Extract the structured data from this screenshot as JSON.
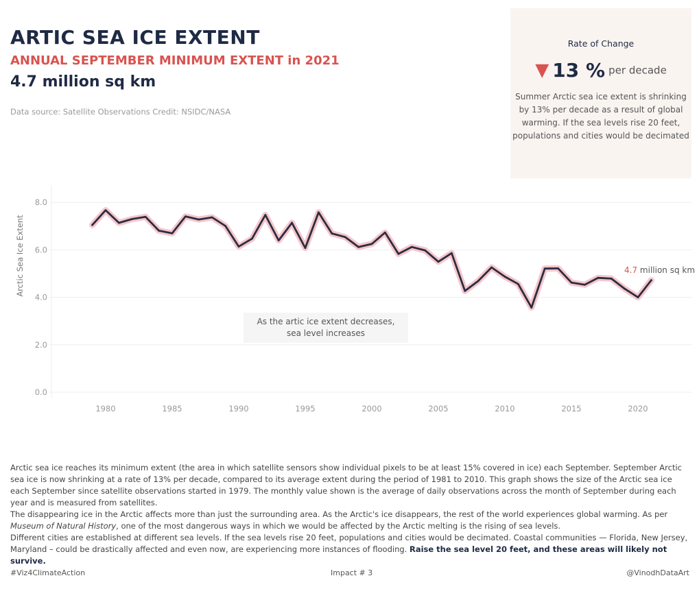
{
  "header": {
    "title": "ARTIC SEA ICE EXTENT",
    "subtitle": "ANNUAL SEPTEMBER MINIMUM EXTENT in 2021",
    "headline": "4.7 million sq km",
    "source": "Data source: Satellite Observations Credit: NSIDC/NASA"
  },
  "rate_box": {
    "title": "Rate of Change",
    "value": "13 %",
    "unit": "per decade",
    "arrow_icon": "down-triangle-icon",
    "description": "Summer Arctic sea ice extent is shrinking by 13% per decade as a result of global warming. If the sea levels rise 20 feet, populations and cities would be decimated"
  },
  "chart_annotation": "As the artic ice extent decreases, sea level increases",
  "end_label": {
    "value": "4.7",
    "unit": "million sq km"
  },
  "chart_data": {
    "type": "line",
    "ylabel": "Arctic Sea Ice Extent",
    "xlabel": "",
    "ylim": [
      0,
      8.8
    ],
    "xlim": [
      1975,
      2024
    ],
    "yticks": [
      "0.0",
      "2.0",
      "4.0",
      "6.0",
      "8.0"
    ],
    "xticks": [
      "1980",
      "1985",
      "1990",
      "1995",
      "2000",
      "2005",
      "2010",
      "2015",
      "2020"
    ],
    "grid": "horizontal",
    "colors": {
      "line": "#2b2d42",
      "halo": "#f5c6cb",
      "accent": "#d9534f"
    },
    "x": [
      1979,
      1980,
      1981,
      1982,
      1983,
      1984,
      1985,
      1986,
      1987,
      1988,
      1989,
      1990,
      1991,
      1992,
      1993,
      1994,
      1995,
      1996,
      1997,
      1998,
      1999,
      2000,
      2001,
      2002,
      2003,
      2004,
      2005,
      2006,
      2007,
      2008,
      2009,
      2010,
      2011,
      2012,
      2013,
      2014,
      2015,
      2016,
      2017,
      2018,
      2019,
      2020,
      2021
    ],
    "y": [
      7.05,
      7.67,
      7.14,
      7.3,
      7.39,
      6.81,
      6.7,
      7.41,
      7.28,
      7.37,
      7.01,
      6.14,
      6.47,
      7.47,
      6.4,
      7.14,
      6.08,
      7.58,
      6.69,
      6.54,
      6.12,
      6.25,
      6.73,
      5.83,
      6.12,
      5.98,
      5.5,
      5.86,
      4.27,
      4.69,
      5.26,
      4.87,
      4.56,
      3.57,
      5.21,
      5.22,
      4.62,
      4.53,
      4.82,
      4.79,
      4.36,
      4.0,
      4.72
    ]
  },
  "description": {
    "p1": "Arctic sea ice reaches its minimum extent (the area in which satellite sensors show individual pixels to be at least 15% covered in ice) each September. September Arctic sea ice is now shrinking at a rate of 13% per decade, compared to its average extent during the period of 1981 to 2010. This graph shows the size of the Arctic sea ice each September since satellite observations started in 1979. The monthly value shown is the average of daily observations across the month of September during each year and is measured from satellites.",
    "p2_start": "The disappearing ice in the Arctic affects more than just the surrounding area. As the Arctic's ice disappears, the rest of the world experiences global warming. As per ",
    "p2_em": "Museum of Natural History",
    "p2_end": ", one of the most dangerous ways in which we would be affected by the Arctic melting is the rising of sea levels.",
    "p3_start": "Different cities are established at different sea levels. If the sea levels rise 20 feet, populations and cities would be decimated. Coastal communities — Florida, New Jersey, Maryland – could be drastically affected and even now, are experiencing more instances of flooding. ",
    "p3_bold": "Raise the sea level 20 feet, and these areas will likely not survive."
  },
  "footer": {
    "left": "#Viz4ClimateAction",
    "center": "Impact # 3",
    "right": "@VinodhDataArt"
  }
}
